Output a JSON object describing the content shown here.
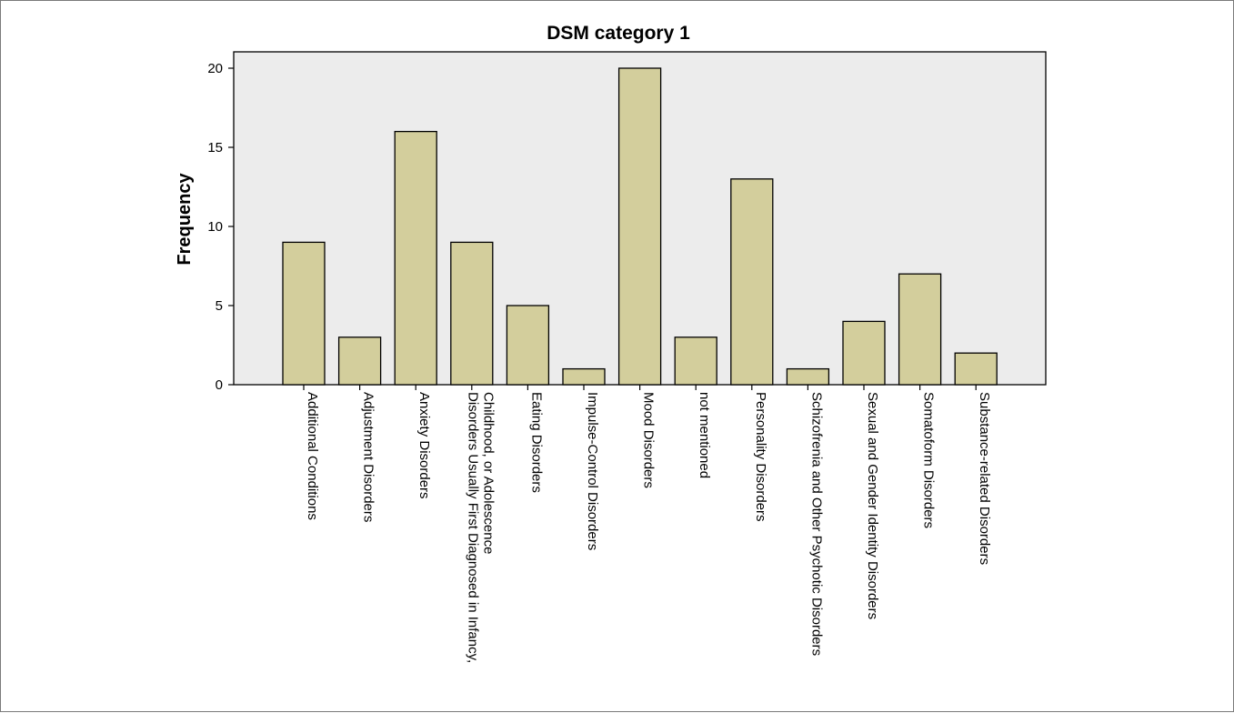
{
  "chart_data": {
    "type": "bar",
    "title": "DSM category 1",
    "xlabel": "",
    "ylabel": "Frequency",
    "ylim": [
      0,
      21
    ],
    "yticks": [
      0,
      5,
      10,
      15,
      20
    ],
    "grid": false,
    "categories": [
      [
        "Additional Conditions"
      ],
      [
        "Adjustment Disorders"
      ],
      [
        "Anxiety Disorders"
      ],
      [
        "Disorders Usually First Diagnosed in Infancy,",
        "Childhood, or Adolescence"
      ],
      [
        "Eating Disorders"
      ],
      [
        "Impulse-Control Disorders"
      ],
      [
        "Mood Disorders"
      ],
      [
        "not mentioned"
      ],
      [
        "Personality Disorders"
      ],
      [
        "Schizofrenia and Other Psychotic Disorders"
      ],
      [
        "Sexual and Gender Identity Disorders"
      ],
      [
        "Somatoform Disorders"
      ],
      [
        "Substance-related Disorders"
      ]
    ],
    "values": [
      9,
      3,
      16,
      9,
      5,
      1,
      20,
      3,
      13,
      1,
      4,
      7,
      2
    ],
    "colors": {
      "bar_fill": "#d3ce9c",
      "bar_stroke": "#000000",
      "plot_background": "#ececec",
      "axis": "#000000"
    }
  }
}
